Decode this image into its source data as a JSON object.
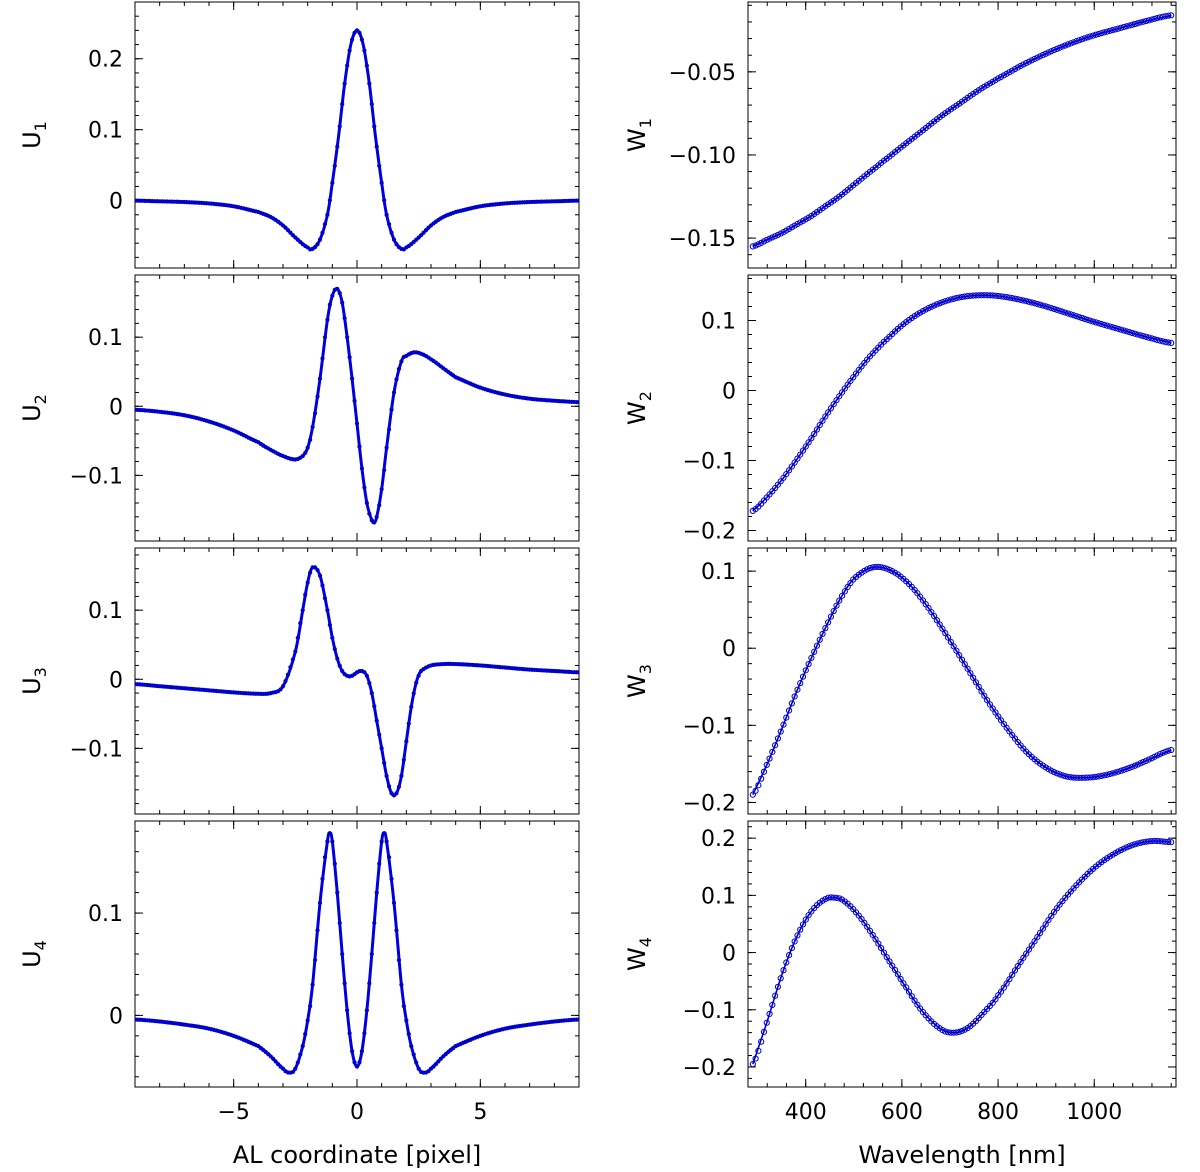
{
  "chart_data": [
    {
      "type": "line",
      "id": "U1",
      "ylabel": "U",
      "ylabel_sub": "1",
      "x": [
        -9,
        -8,
        -7,
        -6,
        -5,
        -4,
        -3.5,
        -3,
        -2.5,
        -2,
        -1.8,
        -1.5,
        -1.2,
        -1,
        -0.75,
        -0.5,
        -0.25,
        0,
        0.25,
        0.5,
        0.75,
        1,
        1.2,
        1.5,
        1.8,
        2,
        2.5,
        3,
        3.5,
        4,
        5,
        6,
        7,
        8,
        9
      ],
      "y": [
        0,
        -0.001,
        -0.002,
        -0.004,
        -0.008,
        -0.016,
        -0.023,
        -0.035,
        -0.052,
        -0.066,
        -0.068,
        -0.055,
        -0.02,
        0.025,
        0.09,
        0.165,
        0.22,
        0.24,
        0.22,
        0.165,
        0.09,
        0.025,
        -0.02,
        -0.055,
        -0.068,
        -0.066,
        -0.052,
        -0.035,
        -0.023,
        -0.016,
        -0.008,
        -0.004,
        -0.002,
        -0.001,
        0
      ],
      "xlim": [
        -9,
        9
      ],
      "ylim": [
        -0.095,
        0.28
      ],
      "yticks": [
        0,
        0.1,
        0.2
      ],
      "ytick_labels": [
        "0",
        "0.1",
        "0.2"
      ],
      "xticks": [
        -5,
        0,
        5
      ],
      "xtick_labels": [],
      "grid": false
    },
    {
      "type": "line",
      "id": "U2",
      "ylabel": "U",
      "ylabel_sub": "2",
      "x": [
        -9,
        -8,
        -7,
        -6,
        -5,
        -4,
        -3.5,
        -3,
        -2.5,
        -2.2,
        -2,
        -1.8,
        -1.5,
        -1.2,
        -1,
        -0.8,
        -0.6,
        -0.4,
        -0.2,
        0,
        0.2,
        0.4,
        0.6,
        0.7,
        0.8,
        1,
        1.2,
        1.5,
        1.8,
        2,
        2.3,
        2.6,
        3,
        3.5,
        4,
        5,
        6,
        7,
        8,
        9
      ],
      "y": [
        -0.005,
        -0.008,
        -0.013,
        -0.022,
        -0.035,
        -0.052,
        -0.063,
        -0.072,
        -0.077,
        -0.072,
        -0.06,
        -0.03,
        0.04,
        0.125,
        0.16,
        0.17,
        0.15,
        0.1,
        0.04,
        -0.025,
        -0.09,
        -0.14,
        -0.165,
        -0.168,
        -0.16,
        -0.12,
        -0.06,
        0.02,
        0.065,
        0.073,
        0.078,
        0.076,
        0.068,
        0.055,
        0.042,
        0.027,
        0.017,
        0.011,
        0.008,
        0.006
      ],
      "xlim": [
        -9,
        9
      ],
      "ylim": [
        -0.195,
        0.19
      ],
      "yticks": [
        -0.1,
        0,
        0.1
      ],
      "ytick_labels": [
        "−0.1",
        "0",
        "0.1"
      ],
      "xticks": [
        -5,
        0,
        5
      ],
      "xtick_labels": [],
      "grid": false
    },
    {
      "type": "line",
      "id": "U3",
      "ylabel": "U",
      "ylabel_sub": "3",
      "x": [
        -9,
        -8,
        -7,
        -6,
        -5,
        -4,
        -3.5,
        -3,
        -2.5,
        -2.2,
        -2,
        -1.8,
        -1.5,
        -1.2,
        -1,
        -0.8,
        -0.6,
        -0.4,
        -0.2,
        0,
        0.2,
        0.4,
        0.6,
        0.8,
        1,
        1.2,
        1.4,
        1.6,
        1.8,
        2,
        2.2,
        2.4,
        2.6,
        3,
        3.5,
        4,
        5,
        6,
        7,
        8,
        9
      ],
      "y": [
        -0.007,
        -0.01,
        -0.013,
        -0.016,
        -0.019,
        -0.021,
        -0.02,
        -0.01,
        0.04,
        0.1,
        0.14,
        0.162,
        0.15,
        0.1,
        0.06,
        0.03,
        0.012,
        0.005,
        0.005,
        0.01,
        0.012,
        0.005,
        -0.02,
        -0.06,
        -0.1,
        -0.14,
        -0.165,
        -0.165,
        -0.14,
        -0.09,
        -0.04,
        -0.005,
        0.012,
        0.02,
        0.022,
        0.022,
        0.02,
        0.017,
        0.014,
        0.012,
        0.01
      ],
      "xlim": [
        -9,
        9
      ],
      "ylim": [
        -0.195,
        0.19
      ],
      "yticks": [
        -0.1,
        0,
        0.1
      ],
      "ytick_labels": [
        "−0.1",
        "0",
        "0.1"
      ],
      "xticks": [
        -5,
        0,
        5
      ],
      "xtick_labels": [],
      "grid": false
    },
    {
      "type": "line",
      "id": "U4",
      "ylabel": "U",
      "ylabel_sub": "4",
      "x": [
        -9,
        -8,
        -7,
        -6,
        -5,
        -4,
        -3.5,
        -3,
        -2.75,
        -2.5,
        -2.2,
        -2,
        -1.8,
        -1.5,
        -1.2,
        -1.1,
        -1,
        -0.8,
        -0.6,
        -0.4,
        -0.2,
        0,
        0.2,
        0.4,
        0.6,
        0.8,
        1,
        1.1,
        1.2,
        1.5,
        1.8,
        2,
        2.2,
        2.5,
        2.75,
        3,
        3.5,
        4,
        5,
        6,
        7,
        8,
        9
      ],
      "y": [
        -0.004,
        -0.006,
        -0.009,
        -0.013,
        -0.02,
        -0.03,
        -0.04,
        -0.052,
        -0.056,
        -0.052,
        -0.03,
        -0.005,
        0.03,
        0.11,
        0.17,
        0.178,
        0.17,
        0.12,
        0.06,
        0.005,
        -0.035,
        -0.05,
        -0.035,
        0.005,
        0.06,
        0.12,
        0.17,
        0.178,
        0.17,
        0.11,
        0.03,
        -0.005,
        -0.03,
        -0.052,
        -0.056,
        -0.052,
        -0.04,
        -0.03,
        -0.02,
        -0.013,
        -0.009,
        -0.006,
        -0.004
      ],
      "xlim": [
        -9,
        9
      ],
      "ylim": [
        -0.07,
        0.19
      ],
      "yticks": [
        0,
        0.1
      ],
      "ytick_labels": [
        "0",
        "0.1"
      ],
      "xticks": [
        -5,
        0,
        5
      ],
      "xtick_labels": [
        "−5",
        "0",
        "5"
      ],
      "xlabel": "AL coordinate  [pixel]",
      "grid": false
    },
    {
      "type": "line",
      "id": "W1",
      "ylabel": "W",
      "ylabel_sub": "1",
      "x": [
        290,
        320,
        350,
        380,
        410,
        440,
        470,
        500,
        530,
        560,
        600,
        640,
        680,
        720,
        760,
        800,
        850,
        900,
        950,
        1000,
        1050,
        1100,
        1160
      ],
      "y": [
        -0.155,
        -0.151,
        -0.147,
        -0.142,
        -0.137,
        -0.131,
        -0.125,
        -0.118,
        -0.111,
        -0.104,
        -0.095,
        -0.086,
        -0.077,
        -0.069,
        -0.061,
        -0.054,
        -0.046,
        -0.039,
        -0.033,
        -0.028,
        -0.024,
        -0.02,
        -0.016
      ],
      "xlim": [
        280,
        1170
      ],
      "ylim": [
        -0.168,
        -0.008
      ],
      "yticks": [
        -0.15,
        -0.1,
        -0.05
      ],
      "ytick_labels": [
        "−0.15",
        "−0.10",
        "−0.05"
      ],
      "xticks": [
        400,
        600,
        800,
        1000
      ],
      "xtick_labels": [],
      "grid": false
    },
    {
      "type": "line",
      "id": "W2",
      "ylabel": "W",
      "ylabel_sub": "2",
      "x": [
        290,
        320,
        350,
        380,
        410,
        440,
        470,
        500,
        530,
        560,
        600,
        640,
        680,
        720,
        760,
        800,
        850,
        900,
        950,
        1000,
        1050,
        1100,
        1160
      ],
      "y": [
        -0.172,
        -0.152,
        -0.128,
        -0.1,
        -0.07,
        -0.038,
        -0.008,
        0.02,
        0.046,
        0.068,
        0.093,
        0.112,
        0.125,
        0.133,
        0.136,
        0.135,
        0.129,
        0.12,
        0.109,
        0.098,
        0.088,
        0.078,
        0.068
      ],
      "xlim": [
        280,
        1170
      ],
      "ylim": [
        -0.215,
        0.165
      ],
      "yticks": [
        -0.2,
        -0.1,
        0,
        0.1
      ],
      "ytick_labels": [
        "−0.2",
        "−0.1",
        "0",
        "0.1"
      ],
      "xticks": [
        400,
        600,
        800,
        1000
      ],
      "xtick_labels": [],
      "grid": false
    },
    {
      "type": "line",
      "id": "W3",
      "ylabel": "W",
      "ylabel_sub": "3",
      "x": [
        290,
        320,
        350,
        380,
        410,
        440,
        470,
        500,
        540,
        580,
        620,
        660,
        700,
        740,
        780,
        820,
        860,
        900,
        940,
        980,
        1020,
        1060,
        1100,
        1160
      ],
      "y": [
        -0.19,
        -0.15,
        -0.105,
        -0.058,
        -0.015,
        0.025,
        0.062,
        0.09,
        0.105,
        0.1,
        0.08,
        0.048,
        0.01,
        -0.03,
        -0.07,
        -0.105,
        -0.135,
        -0.155,
        -0.166,
        -0.168,
        -0.165,
        -0.158,
        -0.148,
        -0.132
      ],
      "xlim": [
        280,
        1170
      ],
      "ylim": [
        -0.215,
        0.13
      ],
      "yticks": [
        -0.2,
        -0.1,
        0,
        0.1
      ],
      "ytick_labels": [
        "−0.2",
        "−0.1",
        "0",
        "0.1"
      ],
      "xticks": [
        400,
        600,
        800,
        1000
      ],
      "xtick_labels": [],
      "grid": false
    },
    {
      "type": "line",
      "id": "W4",
      "ylabel": "W",
      "ylabel_sub": "4",
      "x": [
        290,
        320,
        350,
        380,
        410,
        440,
        460,
        480,
        510,
        540,
        570,
        600,
        640,
        680,
        710,
        740,
        770,
        800,
        840,
        880,
        920,
        960,
        1000,
        1040,
        1080,
        1120,
        1160
      ],
      "y": [
        -0.195,
        -0.12,
        -0.04,
        0.025,
        0.07,
        0.093,
        0.096,
        0.09,
        0.065,
        0.03,
        -0.01,
        -0.05,
        -0.1,
        -0.133,
        -0.14,
        -0.13,
        -0.105,
        -0.075,
        -0.025,
        0.025,
        0.075,
        0.115,
        0.148,
        0.172,
        0.188,
        0.195,
        0.193
      ],
      "xlim": [
        280,
        1170
      ],
      "ylim": [
        -0.235,
        0.23
      ],
      "yticks": [
        -0.2,
        -0.1,
        0,
        0.1,
        0.2
      ],
      "ytick_labels": [
        "−0.2",
        "−0.1",
        "0",
        "0.1",
        "0.2"
      ],
      "xticks": [
        400,
        600,
        800,
        1000
      ],
      "xtick_labels": [
        "400",
        "600",
        "800",
        "1000"
      ],
      "xlabel": "Wavelength  [nm]",
      "grid": false
    }
  ]
}
